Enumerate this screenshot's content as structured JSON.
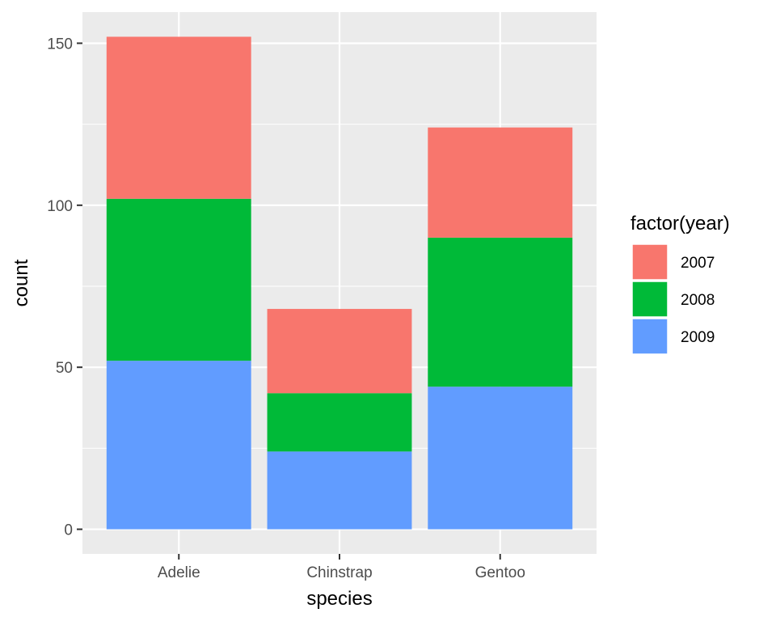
{
  "chart_data": {
    "type": "bar",
    "stacked": true,
    "categories": [
      "Adelie",
      "Chinstrap",
      "Gentoo"
    ],
    "series": [
      {
        "name": "2007",
        "values": [
          50,
          26,
          34
        ],
        "color": "#F8766D"
      },
      {
        "name": "2008",
        "values": [
          50,
          18,
          46
        ],
        "color": "#00BA38"
      },
      {
        "name": "2009",
        "values": [
          52,
          24,
          44
        ],
        "color": "#619CFF"
      }
    ],
    "stack_order_bottom_to_top": [
      "2009",
      "2008",
      "2007"
    ],
    "xlabel": "species",
    "ylabel": "count",
    "ylim": [
      -7.6,
      159.6
    ],
    "yticks": [
      0,
      50,
      100,
      150
    ],
    "grid": true,
    "panel_background": "#EBEBEB",
    "grid_color": "#FFFFFF",
    "legend": {
      "title": "factor(year)",
      "placement": "right"
    }
  }
}
